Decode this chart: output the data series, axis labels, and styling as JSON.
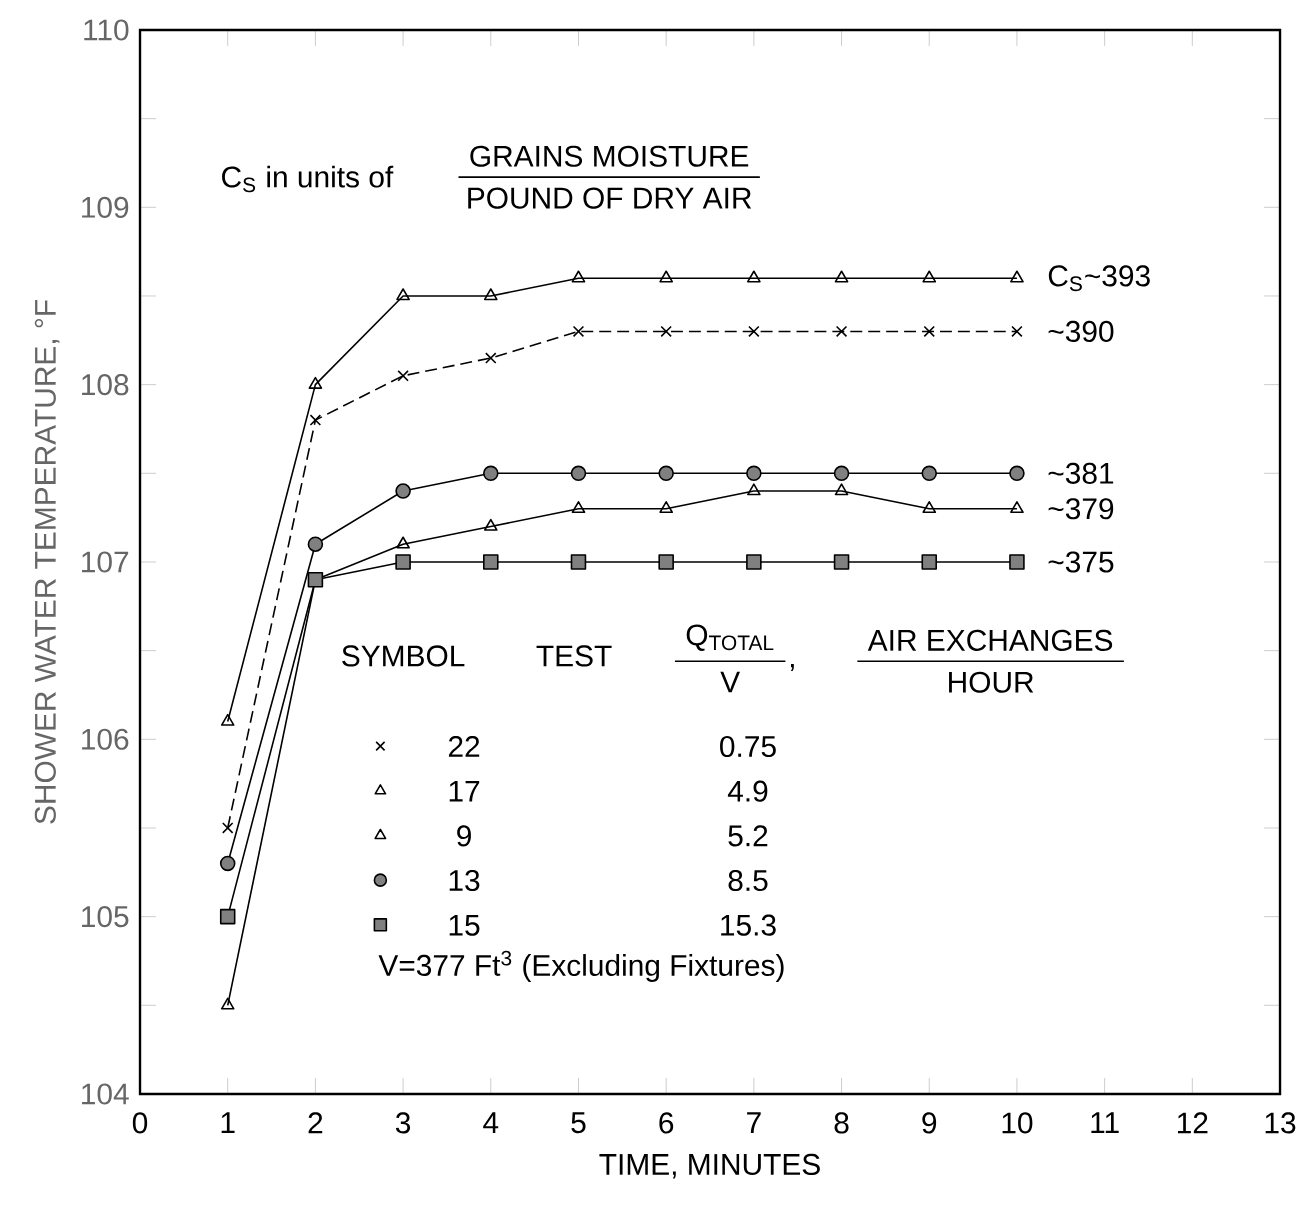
{
  "chart_data": {
    "type": "line",
    "xlabel": "TIME, MINUTES",
    "ylabel": "SHOWER WATER TEMPERATURE, °F",
    "x": [
      1,
      2,
      3,
      4,
      5,
      6,
      7,
      8,
      9,
      10
    ],
    "series": [
      {
        "name": "22",
        "color": "#000000",
        "marker": "cross",
        "line_style": "dashed",
        "values": [
          105.5,
          107.8,
          108.05,
          108.15,
          108.3,
          108.3,
          108.3,
          108.3,
          108.3,
          108.3
        ]
      },
      {
        "name": "17",
        "color": "#000000",
        "marker": "triangle",
        "line_style": "solid",
        "values": [
          106.1,
          108.0,
          108.5,
          108.5,
          108.6,
          108.6,
          108.6,
          108.6,
          108.6,
          108.6
        ]
      },
      {
        "name": "9",
        "color": "#000000",
        "marker": "triangle",
        "line_style": "solid",
        "values": [
          104.5,
          106.9,
          107.1,
          107.2,
          107.3,
          107.3,
          107.4,
          107.4,
          107.3,
          107.3
        ]
      },
      {
        "name": "13",
        "color": "#000000",
        "marker": "circle",
        "line_style": "solid",
        "values": [
          105.3,
          107.1,
          107.4,
          107.5,
          107.5,
          107.5,
          107.5,
          107.5,
          107.5,
          107.5
        ]
      },
      {
        "name": "15",
        "color": "#000000",
        "marker": "square",
        "line_style": "solid",
        "values": [
          105.0,
          106.9,
          107.0,
          107.0,
          107.0,
          107.0,
          107.0,
          107.0,
          107.0,
          107.0
        ]
      }
    ],
    "xlim": [
      0,
      13
    ],
    "xticks": [
      0,
      1,
      2,
      3,
      4,
      5,
      6,
      7,
      8,
      9,
      10,
      11,
      12,
      13
    ],
    "ylim": [
      104,
      110
    ],
    "yticks": [
      104,
      {
        "value": 104.5,
        "label": null
      },
      105,
      {
        "value": 105.5,
        "label": null
      },
      106,
      {
        "value": 106.5,
        "label": null
      },
      107,
      {
        "value": 107.5,
        "label": null
      },
      108,
      {
        "value": 108.5,
        "label": null
      },
      109,
      {
        "value": 109.5,
        "label": null
      },
      110
    ],
    "grid": false,
    "legend": "bottom left",
    "annotations": [
      "C$_{S}$ in units of",
      "GRAINS MOISTURE",
      "POUND OF DRY AIR",
      "SYMBOL",
      "TEST",
      "Q$_{TOTAL}$",
      "V",
      "AIR EXCHANGES",
      "HOUR",
      "0.75",
      "4.9",
      "5.2",
      "8.5",
      "15.3",
      "V=377 Ft$^{3}$ (Excluding Fixtures)",
      "C$_{S}$~393",
      "~390",
      "~381",
      "~379",
      "~375",
      ","
    ]
  }
}
